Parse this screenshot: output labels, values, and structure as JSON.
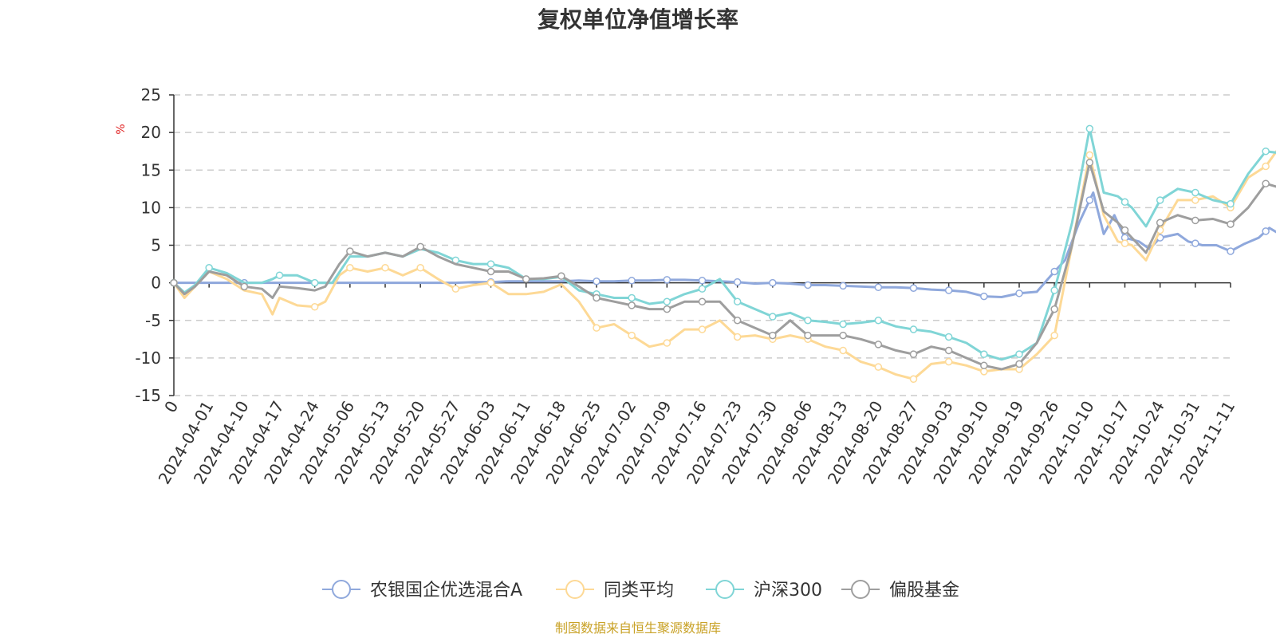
{
  "chart_data": {
    "type": "line",
    "title": "复权单位净值增长率",
    "ylabel": "%",
    "ylim": [
      -15,
      25
    ],
    "yticks": [
      25,
      20,
      15,
      10,
      5,
      0,
      -5,
      -10,
      -15
    ],
    "x_tick_labels": [
      "0",
      "2024-04-01",
      "2024-04-10",
      "2024-04-17",
      "2024-04-24",
      "2024-05-06",
      "2024-05-13",
      "2024-05-20",
      "2024-05-27",
      "2024-06-03",
      "2024-06-11",
      "2024-06-18",
      "2024-06-25",
      "2024-07-02",
      "2024-07-09",
      "2024-07-16",
      "2024-07-23",
      "2024-07-30",
      "2024-08-06",
      "2024-08-13",
      "2024-08-20",
      "2024-08-27",
      "2024-09-03",
      "2024-09-10",
      "2024-09-19",
      "2024-09-26",
      "2024-10-10",
      "2024-10-17",
      "2024-10-24",
      "2024-10-31",
      "2024-11-11"
    ],
    "x_count": 31,
    "grid": true,
    "legend_position": "bottom",
    "source_text": "制图数据来自恒生聚源数据库",
    "series": [
      {
        "name": "农银国企优选混合A",
        "color": "#8fa8dc",
        "points": [
          [
            0,
            0
          ],
          [
            0.5,
            0
          ],
          [
            1,
            0
          ],
          [
            1.5,
            0
          ],
          [
            2,
            0
          ],
          [
            2.5,
            0
          ],
          [
            3,
            0
          ],
          [
            3.5,
            0
          ],
          [
            4,
            0
          ],
          [
            4.5,
            0
          ],
          [
            5,
            0
          ],
          [
            5.5,
            0
          ],
          [
            6,
            0
          ],
          [
            6.5,
            0
          ],
          [
            7,
            0
          ],
          [
            7.5,
            0
          ],
          [
            8,
            0
          ],
          [
            8.5,
            0.1
          ],
          [
            9,
            0.1
          ],
          [
            9.5,
            0.2
          ],
          [
            10,
            0.2
          ],
          [
            10.5,
            0.2
          ],
          [
            11,
            0.2
          ],
          [
            11.5,
            0.3
          ],
          [
            12,
            0.2
          ],
          [
            12.5,
            0.2
          ],
          [
            13,
            0.3
          ],
          [
            13.5,
            0.3
          ],
          [
            14,
            0.4
          ],
          [
            14.5,
            0.4
          ],
          [
            15,
            0.3
          ],
          [
            15.5,
            0.2
          ],
          [
            16,
            0.1
          ],
          [
            16.5,
            -0.1
          ],
          [
            17,
            0
          ],
          [
            17.5,
            -0.1
          ],
          [
            18,
            -0.3
          ],
          [
            18.5,
            -0.3
          ],
          [
            19,
            -0.4
          ],
          [
            19.5,
            -0.5
          ],
          [
            20,
            -0.6
          ],
          [
            20.5,
            -0.6
          ],
          [
            21,
            -0.7
          ],
          [
            21.5,
            -0.9
          ],
          [
            22,
            -1
          ],
          [
            22.5,
            -1.2
          ],
          [
            23,
            -1.8
          ],
          [
            23.5,
            -1.9
          ],
          [
            24,
            -1.4
          ],
          [
            24.5,
            -1.2
          ],
          [
            25,
            1.5
          ],
          [
            25.3,
            3
          ],
          [
            25.7,
            8
          ],
          [
            26.1,
            12
          ],
          [
            26.4,
            6.5
          ],
          [
            26.7,
            9
          ],
          [
            27,
            6
          ],
          [
            27.4,
            5.5
          ],
          [
            27.7,
            4.5
          ],
          [
            28,
            6
          ],
          [
            28.5,
            6.5
          ],
          [
            28.8,
            5.5
          ],
          [
            29.2,
            5
          ],
          [
            29.6,
            5
          ],
          [
            30,
            4.2
          ],
          [
            30.4,
            5.2
          ],
          [
            30.8,
            6
          ],
          [
            31.1,
            7.3
          ],
          [
            31.5,
            6.2
          ]
        ],
        "markers": [
          0,
          2,
          9,
          12,
          13,
          14,
          15,
          16,
          17,
          18,
          19,
          20,
          21,
          22,
          23,
          24,
          25,
          26,
          27,
          28,
          29,
          30,
          31
        ]
      },
      {
        "name": "同类平均",
        "color": "#fdd996",
        "points": [
          [
            0,
            0
          ],
          [
            0.3,
            -2
          ],
          [
            0.6,
            -0.5
          ],
          [
            1,
            1.5
          ],
          [
            1.5,
            0.5
          ],
          [
            2,
            -1
          ],
          [
            2.5,
            -1.5
          ],
          [
            2.8,
            -4.2
          ],
          [
            3,
            -2
          ],
          [
            3.5,
            -3
          ],
          [
            4,
            -3.2
          ],
          [
            4.3,
            -2.5
          ],
          [
            4.7,
            1
          ],
          [
            5,
            2
          ],
          [
            5.5,
            1.5
          ],
          [
            6,
            2
          ],
          [
            6.5,
            1
          ],
          [
            7,
            2
          ],
          [
            7.5,
            0.5
          ],
          [
            8,
            -0.8
          ],
          [
            8.5,
            -0.3
          ],
          [
            9,
            0
          ],
          [
            9.5,
            -1.5
          ],
          [
            10,
            -1.5
          ],
          [
            10.5,
            -1.2
          ],
          [
            11,
            -0.2
          ],
          [
            11.5,
            -2.5
          ],
          [
            12,
            -6
          ],
          [
            12.5,
            -5.5
          ],
          [
            13,
            -7
          ],
          [
            13.5,
            -8.5
          ],
          [
            14,
            -8
          ],
          [
            14.5,
            -6.2
          ],
          [
            15,
            -6.2
          ],
          [
            15.5,
            -5
          ],
          [
            16,
            -7.2
          ],
          [
            16.5,
            -7
          ],
          [
            17,
            -7.5
          ],
          [
            17.5,
            -7
          ],
          [
            18,
            -7.5
          ],
          [
            18.5,
            -8.5
          ],
          [
            19,
            -9
          ],
          [
            19.5,
            -10.5
          ],
          [
            20,
            -11.2
          ],
          [
            20.5,
            -12.2
          ],
          [
            21,
            -12.8
          ],
          [
            21.5,
            -10.8
          ],
          [
            22,
            -10.5
          ],
          [
            22.5,
            -11
          ],
          [
            23,
            -11.8
          ],
          [
            23.5,
            -11.5
          ],
          [
            24,
            -11.5
          ],
          [
            24.5,
            -9.5
          ],
          [
            25,
            -7
          ],
          [
            25.5,
            5
          ],
          [
            26,
            17
          ],
          [
            26.4,
            9
          ],
          [
            26.8,
            5.5
          ],
          [
            27.2,
            5
          ],
          [
            27.6,
            3
          ],
          [
            28,
            7
          ],
          [
            28.5,
            11
          ],
          [
            29,
            11
          ],
          [
            29.5,
            11.5
          ],
          [
            30,
            10
          ],
          [
            30.5,
            14
          ],
          [
            31,
            15.5
          ],
          [
            31.5,
            18.8
          ]
        ],
        "markers": [
          0,
          4,
          5,
          6,
          7,
          8,
          9,
          12,
          13,
          14,
          15,
          16,
          17,
          18,
          19,
          20,
          21,
          22,
          23,
          24,
          25,
          26,
          27,
          28,
          29,
          30,
          31
        ]
      },
      {
        "name": "沪深300",
        "color": "#80d5d6",
        "points": [
          [
            0,
            0
          ],
          [
            0.3,
            -1.3
          ],
          [
            0.6,
            -0.3
          ],
          [
            1,
            2
          ],
          [
            1.5,
            1.3
          ],
          [
            2,
            0
          ],
          [
            2.5,
            0
          ],
          [
            2.8,
            0.5
          ],
          [
            3,
            1
          ],
          [
            3.5,
            1
          ],
          [
            4,
            0
          ],
          [
            4.5,
            0
          ],
          [
            5,
            3.5
          ],
          [
            5.5,
            3.5
          ],
          [
            6,
            4
          ],
          [
            6.5,
            3.5
          ],
          [
            7,
            4.5
          ],
          [
            7.5,
            4
          ],
          [
            8,
            3
          ],
          [
            8.5,
            2.5
          ],
          [
            9,
            2.5
          ],
          [
            9.5,
            2
          ],
          [
            10,
            0.5
          ],
          [
            10.5,
            0.5
          ],
          [
            11,
            0.8
          ],
          [
            11.5,
            -1
          ],
          [
            12,
            -1.5
          ],
          [
            12.5,
            -2
          ],
          [
            13,
            -2
          ],
          [
            13.5,
            -2.8
          ],
          [
            14,
            -2.5
          ],
          [
            14.5,
            -1.5
          ],
          [
            15,
            -0.8
          ],
          [
            15.5,
            0.5
          ],
          [
            16,
            -2.5
          ],
          [
            16.5,
            -3.5
          ],
          [
            17,
            -4.5
          ],
          [
            17.5,
            -4
          ],
          [
            18,
            -5
          ],
          [
            18.5,
            -5.2
          ],
          [
            19,
            -5.5
          ],
          [
            19.5,
            -5.3
          ],
          [
            20,
            -5
          ],
          [
            20.5,
            -5.8
          ],
          [
            21,
            -6.2
          ],
          [
            21.5,
            -6.5
          ],
          [
            22,
            -7.2
          ],
          [
            22.5,
            -8
          ],
          [
            23,
            -9.5
          ],
          [
            23.5,
            -10.2
          ],
          [
            24,
            -9.5
          ],
          [
            24.5,
            -8
          ],
          [
            25,
            -1
          ],
          [
            25.5,
            8
          ],
          [
            26,
            20.5
          ],
          [
            26.4,
            12
          ],
          [
            26.8,
            11.5
          ],
          [
            27.2,
            10
          ],
          [
            27.6,
            7.5
          ],
          [
            28,
            11
          ],
          [
            28.5,
            12.5
          ],
          [
            29,
            12
          ],
          [
            29.5,
            11
          ],
          [
            30,
            10.5
          ],
          [
            30.5,
            14.5
          ],
          [
            31,
            17.5
          ],
          [
            31.5,
            17.2
          ]
        ],
        "markers": [
          0,
          1,
          3,
          4,
          8,
          9,
          12,
          13,
          14,
          15,
          16,
          17,
          18,
          19,
          20,
          21,
          22,
          23,
          24,
          25,
          26,
          27,
          28,
          29,
          30,
          31
        ]
      },
      {
        "name": "偏股基金",
        "color": "#9e9e9e",
        "points": [
          [
            0,
            0
          ],
          [
            0.3,
            -1.5
          ],
          [
            0.6,
            -0.5
          ],
          [
            1,
            1.5
          ],
          [
            1.5,
            1
          ],
          [
            2,
            -0.5
          ],
          [
            2.5,
            -0.8
          ],
          [
            2.8,
            -2
          ],
          [
            3,
            -0.5
          ],
          [
            3.5,
            -0.7
          ],
          [
            4,
            -1
          ],
          [
            4.3,
            -0.5
          ],
          [
            4.7,
            2.5
          ],
          [
            5,
            4.2
          ],
          [
            5.5,
            3.5
          ],
          [
            6,
            4
          ],
          [
            6.5,
            3.5
          ],
          [
            7,
            4.8
          ],
          [
            7.5,
            3.5
          ],
          [
            8,
            2.5
          ],
          [
            8.5,
            2
          ],
          [
            9,
            1.5
          ],
          [
            9.5,
            1.5
          ],
          [
            10,
            0.5
          ],
          [
            10.5,
            0.6
          ],
          [
            11,
            0.9
          ],
          [
            11.5,
            -0.5
          ],
          [
            12,
            -2
          ],
          [
            12.5,
            -2.5
          ],
          [
            13,
            -3
          ],
          [
            13.5,
            -3.5
          ],
          [
            14,
            -3.5
          ],
          [
            14.5,
            -2.5
          ],
          [
            15,
            -2.5
          ],
          [
            15.5,
            -2.5
          ],
          [
            16,
            -5
          ],
          [
            16.5,
            -6
          ],
          [
            17,
            -7
          ],
          [
            17.5,
            -5
          ],
          [
            18,
            -7
          ],
          [
            18.5,
            -7
          ],
          [
            19,
            -7
          ],
          [
            19.5,
            -7.5
          ],
          [
            20,
            -8.2
          ],
          [
            20.5,
            -9
          ],
          [
            21,
            -9.5
          ],
          [
            21.5,
            -8.5
          ],
          [
            22,
            -9
          ],
          [
            22.5,
            -10
          ],
          [
            23,
            -11
          ],
          [
            23.5,
            -11.5
          ],
          [
            24,
            -10.8
          ],
          [
            24.5,
            -8
          ],
          [
            25,
            -3.5
          ],
          [
            25.5,
            5
          ],
          [
            26,
            16
          ],
          [
            26.4,
            9.5
          ],
          [
            26.8,
            8
          ],
          [
            27.2,
            6
          ],
          [
            27.6,
            4
          ],
          [
            28,
            8
          ],
          [
            28.5,
            9
          ],
          [
            29,
            8.3
          ],
          [
            29.5,
            8.5
          ],
          [
            30,
            7.8
          ],
          [
            30.5,
            10
          ],
          [
            31,
            13.2
          ],
          [
            31.3,
            12.8
          ]
        ],
        "markers": [
          0,
          2,
          5,
          7,
          9,
          10,
          11,
          12,
          13,
          14,
          15,
          16,
          17,
          18,
          19,
          20,
          21,
          22,
          23,
          24,
          25,
          26,
          27,
          28,
          29,
          30,
          31
        ]
      }
    ]
  }
}
